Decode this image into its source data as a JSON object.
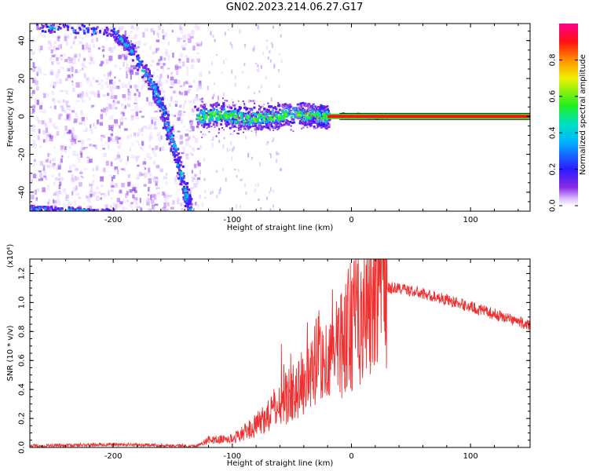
{
  "title": "GN02.2023.214.06.27.G17",
  "colors": {
    "snr_line": "#f03030",
    "axis": "#000000"
  },
  "chart_data": [
    {
      "type": "heatmap",
      "xlabel": "Height of straight line (km)",
      "ylabel": "Frequency (Hz)",
      "xlim": [
        -270,
        150
      ],
      "ylim": [
        -50,
        49
      ],
      "xticks": [
        -200,
        -100,
        0,
        100
      ],
      "xtick_labels": [
        "-200",
        "-100",
        "0",
        "100"
      ],
      "yticks": [
        -40,
        -20,
        0,
        20,
        40
      ],
      "ytick_labels": [
        "-40",
        "-20",
        "0",
        "20",
        "40"
      ],
      "colorbar": {
        "label": "Normalized spectral amplitude",
        "range": [
          0,
          1
        ],
        "ticks": [
          0.0,
          0.2,
          0.4,
          0.6,
          0.8
        ],
        "tick_labels": [
          "0.0",
          "0.2",
          "0.4",
          "0.6",
          "0.8"
        ],
        "colormap": "rainbow (white-purple-blue-cyan-green-yellow-orange-red-magenta)"
      },
      "features": [
        {
          "name": "descending streak",
          "points": [
            [
              -265,
              48
            ],
            [
              -200,
              45
            ],
            [
              -185,
              35
            ],
            [
              -170,
              20
            ],
            [
              -160,
              5
            ],
            [
              -150,
              -15
            ],
            [
              -140,
              -40
            ],
            [
              -136,
              -50
            ]
          ]
        },
        {
          "name": "converging band",
          "points": [
            [
              -130,
              0
            ],
            [
              -110,
              2
            ],
            [
              -90,
              -1
            ],
            [
              -70,
              0
            ],
            [
              -50,
              2
            ],
            [
              -30,
              1
            ],
            [
              -20,
              0
            ]
          ]
        },
        {
          "name": "steady carrier",
          "points": [
            [
              -20,
              0
            ],
            [
              150,
              0
            ]
          ]
        },
        {
          "name": "bottom streak",
          "points": [
            [
              -270,
              -48
            ],
            [
              -200,
              -50
            ]
          ]
        }
      ]
    },
    {
      "type": "line",
      "xlabel": "Height of straight line (km)",
      "ylabel": "SNR (10 * v/v)",
      "y_scale_label": "(x10⁴)",
      "xlim": [
        -270,
        150
      ],
      "ylim": [
        0,
        1.3
      ],
      "xticks": [
        -200,
        -100,
        0,
        100
      ],
      "xtick_labels": [
        "-200",
        "-100",
        "0",
        "100"
      ],
      "yticks": [
        0.0,
        0.2,
        0.4,
        0.6,
        0.8,
        1.0,
        1.2
      ],
      "ytick_labels": [
        "0.0",
        "0.2",
        "0.4",
        "0.6",
        "0.8",
        "1.0",
        "1.2"
      ],
      "series": [
        {
          "envelope_x": [
            -270,
            -200,
            -130,
            -120,
            -100,
            -80,
            -60,
            -40,
            -30,
            -20,
            -10,
            0,
            10,
            20,
            30,
            40,
            60,
            80,
            100,
            120,
            140,
            150
          ],
          "envelope_y": [
            0.01,
            0.02,
            0.01,
            0.05,
            0.06,
            0.15,
            0.3,
            0.45,
            0.55,
            0.6,
            0.7,
            0.85,
            0.95,
            1.05,
            1.1,
            1.1,
            1.06,
            1.02,
            0.97,
            0.92,
            0.87,
            0.84
          ]
        }
      ]
    }
  ]
}
